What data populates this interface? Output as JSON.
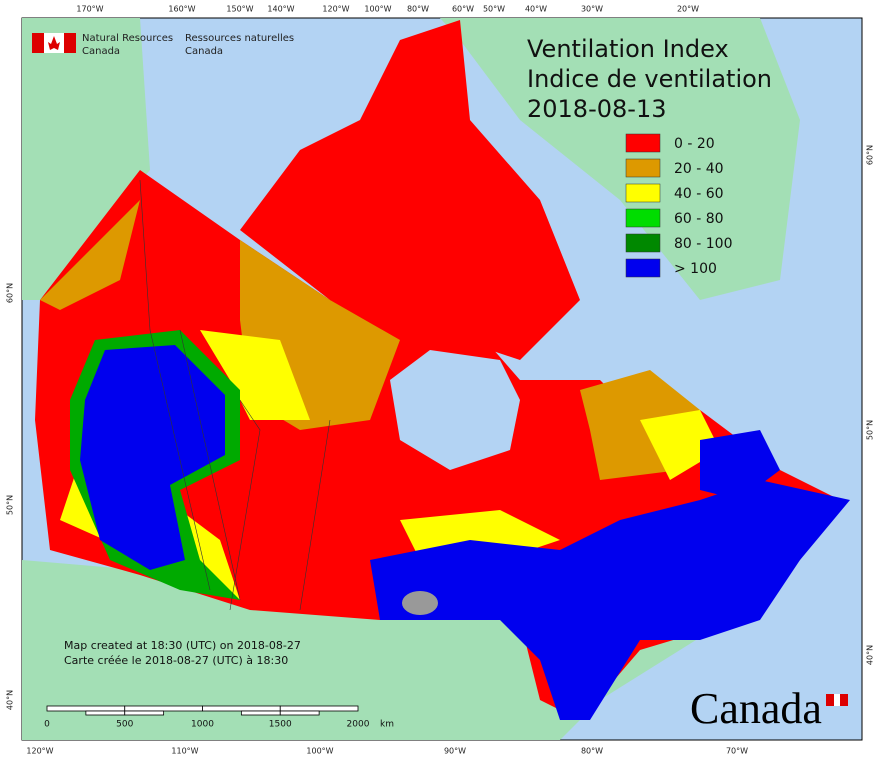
{
  "org": {
    "en": [
      "Natural Resources",
      "Canada"
    ],
    "fr": [
      "Ressources naturelles",
      "Canada"
    ]
  },
  "title": {
    "en": "Ventilation Index",
    "fr": "Indice de ventilation",
    "date": "2018-08-13"
  },
  "legend": [
    {
      "label": "0 - 20",
      "color": "#ff0000"
    },
    {
      "label": "20 - 40",
      "color": "#dd9900"
    },
    {
      "label": "40 - 60",
      "color": "#ffff00"
    },
    {
      "label": "60 - 80",
      "color": "#00dd00"
    },
    {
      "label": "80 - 100",
      "color": "#008800"
    },
    {
      "label": "> 100",
      "color": "#0000ee"
    }
  ],
  "top_labels": [
    "170°W",
    "160°W",
    "150°W",
    "140°W",
    "120°W",
    "100°W",
    "80°W",
    "60°W",
    "50°W",
    "40°W",
    "30°W",
    "20°W"
  ],
  "bottom_labels": [
    "120°W",
    "110°W",
    "100°W",
    "90°W",
    "80°W",
    "70°W"
  ],
  "left_labels": [
    "60°N",
    "50°N",
    "40°N"
  ],
  "right_labels": [
    "60°N",
    "50°N",
    "40°N"
  ],
  "credits": [
    "Map created at 18:30 (UTC) on 2018-08-27",
    "Carte créée le 2018-08-27 (UTC) à 18:30"
  ],
  "scale": {
    "ticks": [
      "0",
      "500",
      "1000",
      "1500",
      "2000"
    ],
    "unit": "km"
  },
  "wordmark": "Canada"
}
